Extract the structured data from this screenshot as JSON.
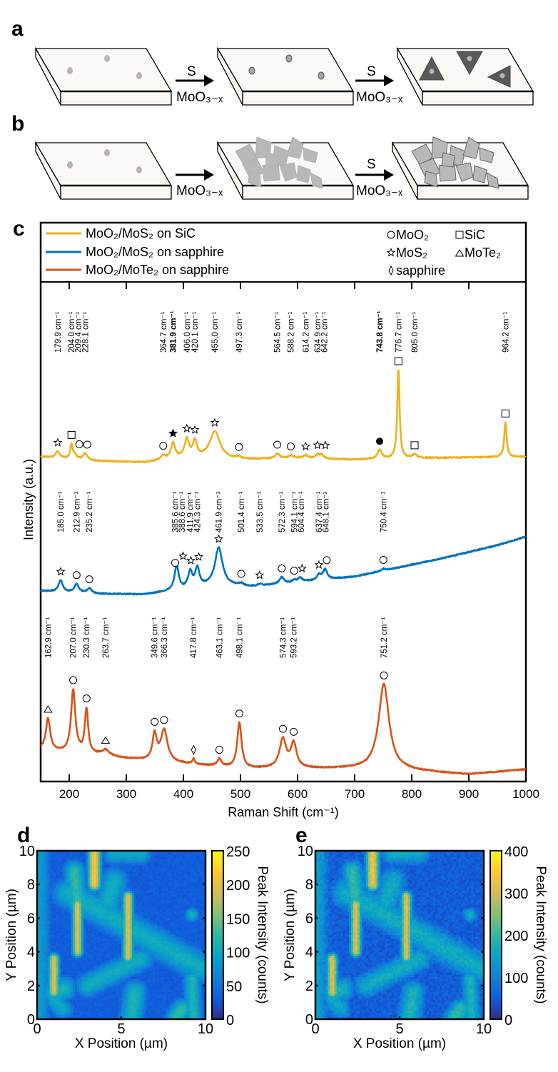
{
  "panels": {
    "a": "a",
    "b": "b",
    "c": "c",
    "d": "d",
    "e": "e"
  },
  "schematic": {
    "a": {
      "arrow1_top": "S",
      "arrow1_bottom": "MoO₃₋ₓ",
      "arrow2_top": "S",
      "arrow2_bottom": "MoO₃₋ₓ"
    },
    "b": {
      "arrow1_top": "",
      "arrow1_bottom": "MoO₃₋ₓ",
      "arrow2_top": "S",
      "arrow2_bottom": "MoO₃₋ₓ"
    }
  },
  "colors": {
    "sic": "#EDB120",
    "sapphire_mos2": "#0072BD",
    "sapphire_mote2": "#D95319"
  },
  "chart_data": [
    {
      "type": "line",
      "xlabel": "Raman Shift (cm⁻¹)",
      "ylabel": "Intensity (a.u.)",
      "xlim": [
        150,
        1000
      ],
      "xticks": [
        "200",
        "300",
        "400",
        "500",
        "600",
        "700",
        "800",
        "900",
        "1000"
      ],
      "legend_placement": "top",
      "legend": [
        {
          "label": "MoO₂/MoS₂ on SiC",
          "color": "#EDB120"
        },
        {
          "label": "MoO₂/MoS₂ on sapphire",
          "color": "#0072BD"
        },
        {
          "label": "MoO₂/MoTe₂ on sapphire",
          "color": "#D95319"
        }
      ],
      "marker_legend": [
        {
          "symbol": "circle",
          "label": "MoO₂"
        },
        {
          "symbol": "square",
          "label": "SiC"
        },
        {
          "symbol": "star",
          "label": "MoS₂"
        },
        {
          "symbol": "triangle",
          "label": "MoTe₂"
        },
        {
          "symbol": "diamond",
          "label": "sapphire"
        }
      ],
      "series": [
        {
          "key": "sic",
          "peaks": [
            {
              "x": 179.9,
              "label": "179.9 cm⁻¹",
              "h": 9,
              "marker": "star"
            },
            {
              "x": 204.0,
              "label": "204.0 cm⁻¹",
              "h": 19,
              "w": 2.5,
              "marker": "square"
            },
            {
              "x": 209.4,
              "label": "209.4 cm⁻¹",
              "h": 5,
              "marker": "circle"
            },
            {
              "x": 228.1,
              "label": "228.1 cm⁻¹",
              "h": 9,
              "marker": "circle"
            },
            {
              "x": 364.7,
              "label": "364.7 cm⁻¹",
              "h": 6,
              "marker": "circle"
            },
            {
              "x": 381.9,
              "label": "381.9 cm⁻¹",
              "h": 22,
              "marker": "star-filled",
              "bold": true
            },
            {
              "x": 406.0,
              "label": "406.0 cm⁻¹",
              "h": 25,
              "marker": "star"
            },
            {
              "x": 420.1,
              "label": "420.1 cm⁻¹",
              "h": 22,
              "marker": "star"
            },
            {
              "x": 455.0,
              "label": "455.0 cm⁻¹",
              "h": 38,
              "w": 11,
              "marker": "star"
            },
            {
              "x": 497.3,
              "label": "497.3 cm⁻¹",
              "h": 3,
              "marker": "circle"
            },
            {
              "x": 564.5,
              "label": "564.5 cm⁻¹",
              "h": 7,
              "marker": "circle"
            },
            {
              "x": 588.2,
              "label": "588.2 cm⁻¹",
              "h": 4,
              "marker": "circle"
            },
            {
              "x": 614.2,
              "label": "614.2 cm⁻¹",
              "h": 4,
              "marker": "star"
            },
            {
              "x": 634.9,
              "label": "634.9 cm⁻¹",
              "h": 5,
              "marker": "star"
            },
            {
              "x": 642.2,
              "label": "642.2 cm⁻¹",
              "h": 5,
              "marker": "star"
            },
            {
              "x": 743.8,
              "label": "743.8 cm⁻¹",
              "h": 12,
              "marker": "circle-filled",
              "bold": true
            },
            {
              "x": 776.7,
              "label": "776.7 cm⁻¹",
              "h": 124,
              "w": 2.5,
              "marker": "square"
            },
            {
              "x": 805.0,
              "label": "805.0 cm⁻¹",
              "h": 5,
              "marker": "square"
            },
            {
              "x": 964.2,
              "label": "964.2 cm⁻¹",
              "h": 49,
              "w": 2.5,
              "marker": "square"
            }
          ]
        },
        {
          "key": "sapphire_mos2",
          "peaks": [
            {
              "x": 185.0,
              "label": "185.0 cm⁻¹",
              "h": 16,
              "marker": "star"
            },
            {
              "x": 212.9,
              "label": "212.9 cm⁻¹",
              "h": 12,
              "marker": "circle"
            },
            {
              "x": 235.2,
              "label": "235.2 cm⁻¹",
              "h": 7,
              "marker": "circle"
            },
            {
              "x": 385.6,
              "label": "385.6 cm⁻¹",
              "h": 6,
              "marker": "circle"
            },
            {
              "x": 388.6,
              "label": "388.6 cm⁻¹",
              "h": 30,
              "w": 4,
              "marker": "star"
            },
            {
              "x": 411.9,
              "label": "411.9 cm⁻¹",
              "h": 22,
              "marker": "star"
            },
            {
              "x": 424.3,
              "label": "424.3 cm⁻¹",
              "h": 26,
              "marker": "star"
            },
            {
              "x": 461.9,
              "label": "461.9 cm⁻¹",
              "h": 52,
              "w": 8,
              "marker": "star"
            },
            {
              "x": 501.4,
              "label": "501.4 cm⁻¹",
              "h": 3,
              "marker": "circle"
            },
            {
              "x": 533.5,
              "label": "533.5 cm⁻¹",
              "h": 2,
              "marker": "star"
            },
            {
              "x": 572.3,
              "label": "572.3 cm⁻¹",
              "h": 9,
              "marker": "circle"
            },
            {
              "x": 594.1,
              "label": "594.1 cm⁻¹",
              "h": 3,
              "marker": "circle"
            },
            {
              "x": 604.4,
              "label": "604.4 cm⁻¹",
              "h": 6,
              "marker": "star"
            },
            {
              "x": 637.4,
              "label": "637.4 cm⁻¹",
              "h": 7,
              "marker": "star"
            },
            {
              "x": 648.1,
              "label": "648.1 cm⁻¹",
              "h": 14,
              "marker": "circle"
            },
            {
              "x": 750.4,
              "label": "750.4 cm⁻¹",
              "h": 3,
              "marker": "circle"
            }
          ]
        },
        {
          "key": "sapphire_mote2",
          "peaks": [
            {
              "x": 162.9,
              "label": "162.9 cm⁻¹",
              "h": 44,
              "marker": "triangle"
            },
            {
              "x": 207.0,
              "label": "207.0 cm⁻¹",
              "h": 88,
              "marker": "circle"
            },
            {
              "x": 230.3,
              "label": "230.3 cm⁻¹",
              "h": 62,
              "w": 3.5,
              "marker": "circle"
            },
            {
              "x": 263.7,
              "label": "263.7 cm⁻¹",
              "h": 8,
              "w": 8,
              "marker": "triangle"
            },
            {
              "x": 349.6,
              "label": "349.6 cm⁻¹",
              "h": 36,
              "marker": "circle"
            },
            {
              "x": 366.3,
              "label": "366.3 cm⁻¹",
              "h": 44,
              "w": 7,
              "marker": "circle"
            },
            {
              "x": 417.8,
              "label": "417.8 cm⁻¹",
              "h": 7,
              "w": 2.5,
              "marker": "diamond"
            },
            {
              "x": 463.1,
              "label": "463.1 cm⁻¹",
              "h": 10,
              "marker": "circle"
            },
            {
              "x": 498.1,
              "label": "498.1 cm⁻¹",
              "h": 64,
              "w": 4.5,
              "marker": "circle"
            },
            {
              "x": 574.3,
              "label": "574.3 cm⁻¹",
              "h": 40,
              "w": 7,
              "marker": "circle"
            },
            {
              "x": 593.2,
              "label": "593.2 cm⁻¹",
              "h": 34,
              "w": 6,
              "marker": "circle"
            },
            {
              "x": 751.2,
              "label": "751.2 cm⁻¹",
              "h": 120,
              "w": 11,
              "marker": "circle"
            }
          ]
        }
      ]
    },
    {
      "type": "heatmap",
      "panel": "d",
      "xlabel": "X Position (µm)",
      "ylabel": "Y Position (µm)",
      "xlim": [
        0,
        10
      ],
      "ylim": [
        0,
        10
      ],
      "xticks": [
        "0",
        "5",
        "10"
      ],
      "yticks": [
        "0",
        "2",
        "4",
        "6",
        "8",
        "10"
      ],
      "colorbar_label": "Peak Intensity (counts)",
      "colorbar_range": [
        0,
        250
      ],
      "colorbar_ticks": [
        "0",
        "50",
        "100",
        "150",
        "200",
        "250"
      ],
      "colormap": "parula"
    },
    {
      "type": "heatmap",
      "panel": "e",
      "xlabel": "X Position (µm)",
      "ylabel": "Y Position (µm)",
      "xlim": [
        0,
        10
      ],
      "ylim": [
        0,
        10
      ],
      "xticks": [
        "0",
        "5",
        "10"
      ],
      "yticks": [
        "0",
        "2",
        "4",
        "6",
        "8",
        "10"
      ],
      "colorbar_label": "Peak Intensity (counts)",
      "colorbar_range": [
        0,
        400
      ],
      "colorbar_ticks": [
        "0",
        "100",
        "200",
        "300",
        "400"
      ],
      "colormap": "parula"
    }
  ]
}
